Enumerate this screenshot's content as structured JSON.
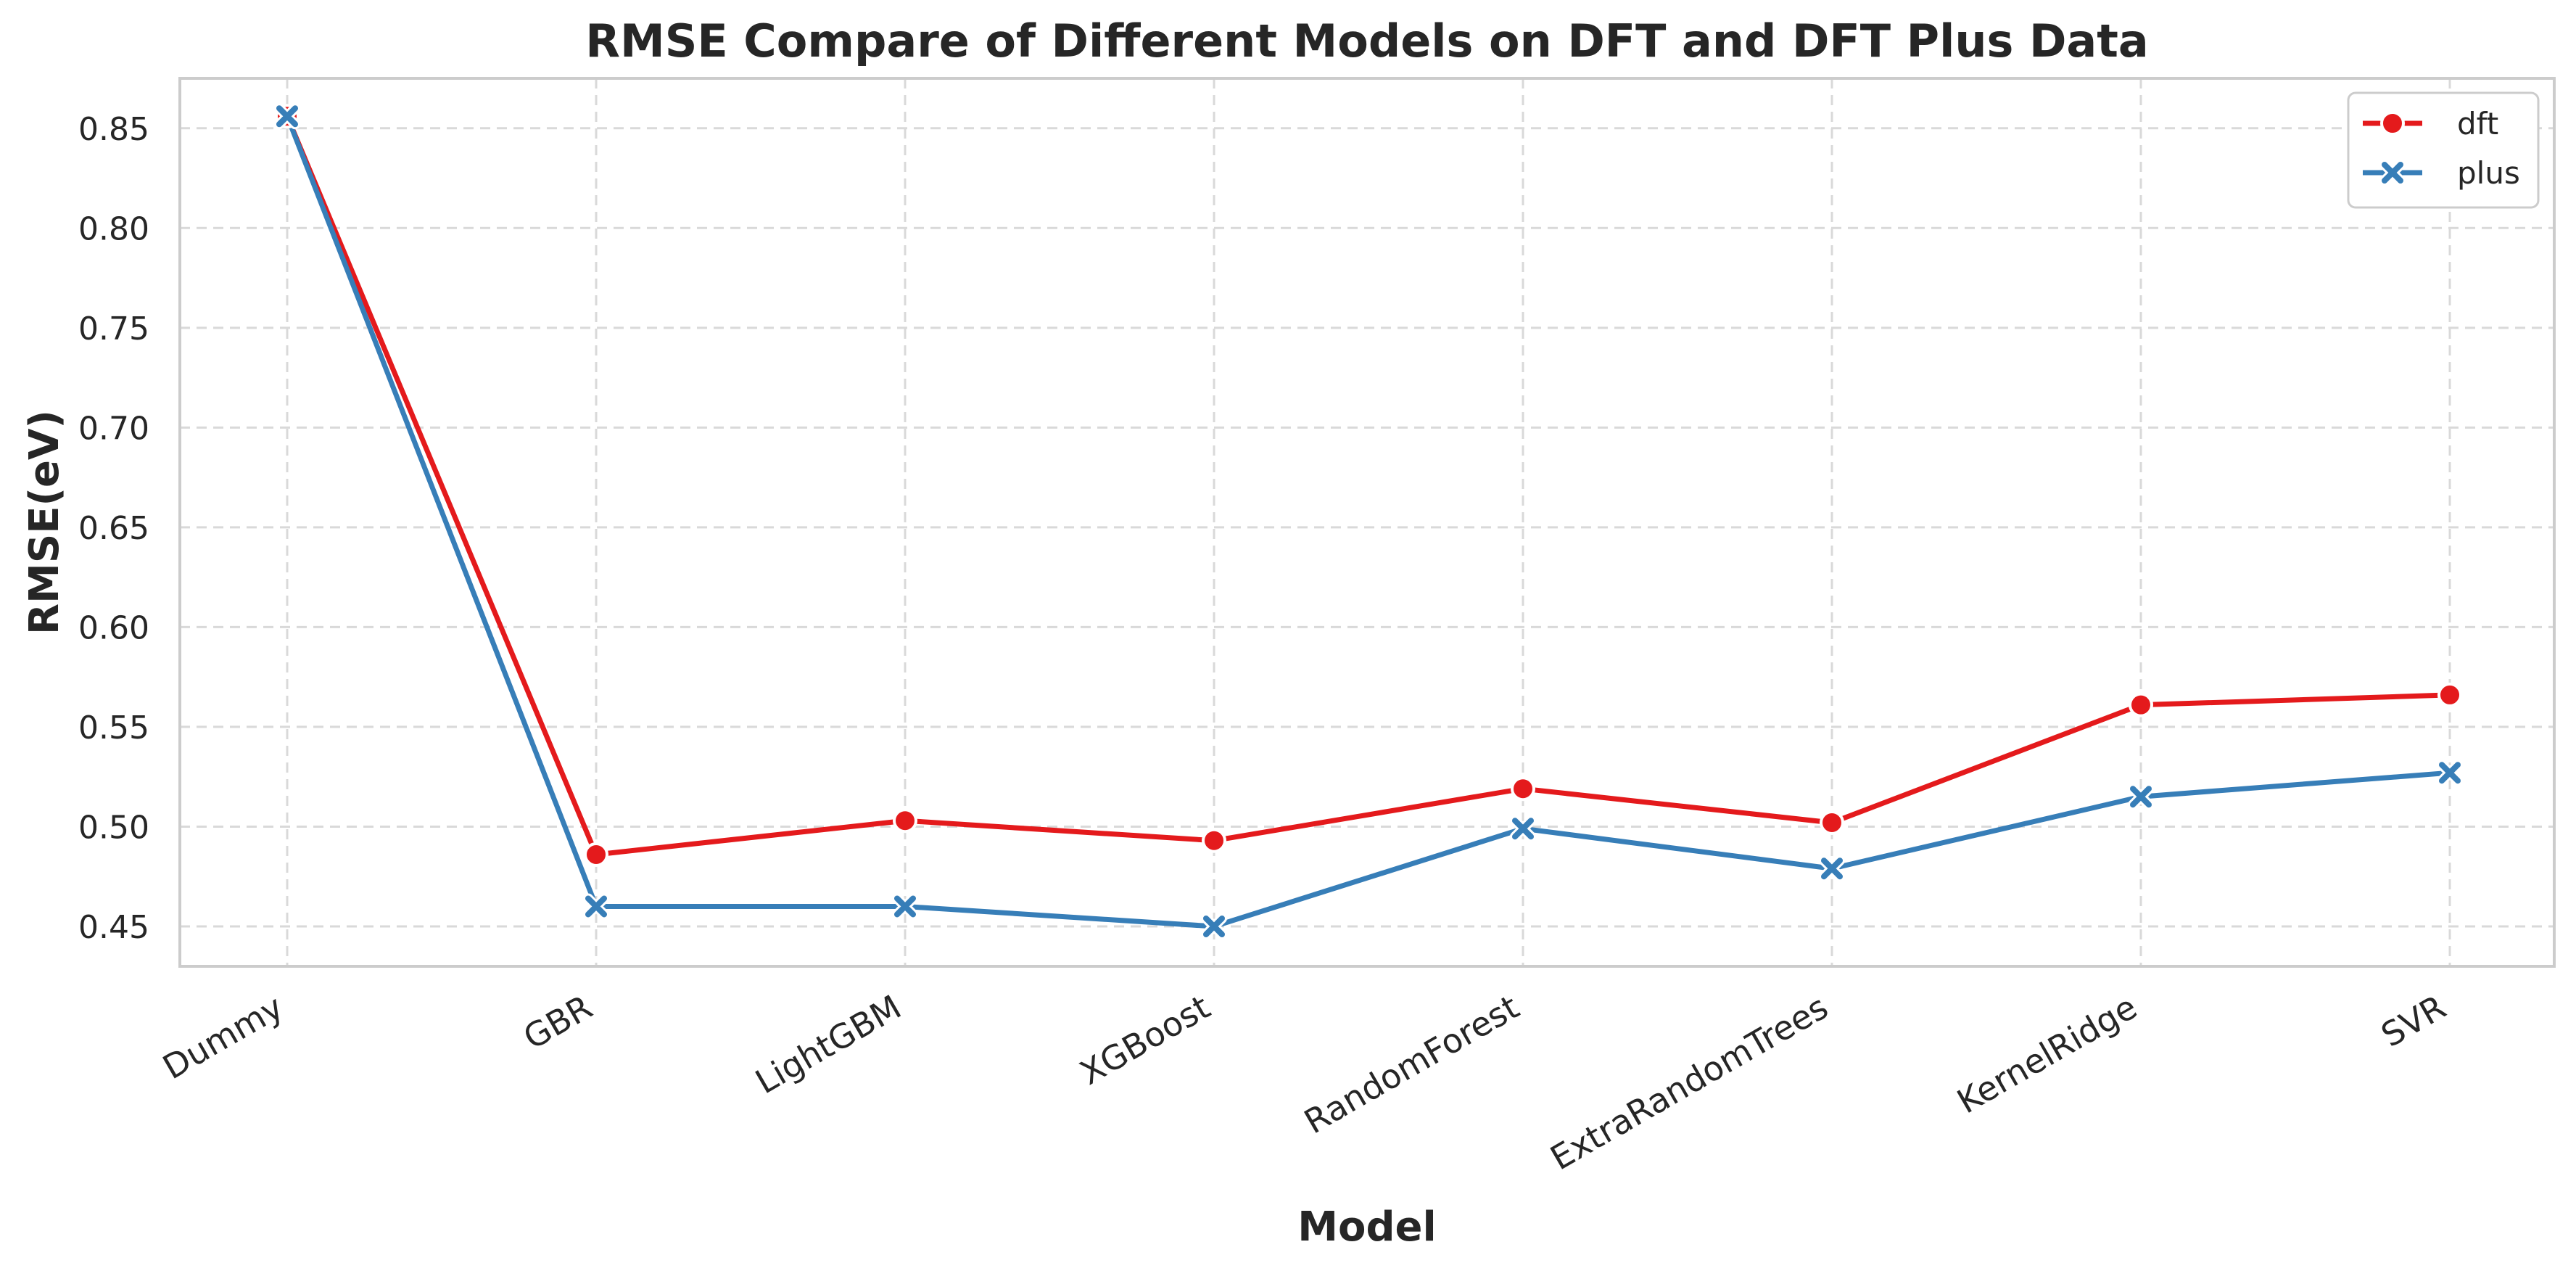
{
  "chart_data": {
    "type": "line",
    "title": "RMSE Compare of Different Models on DFT and DFT Plus Data",
    "xlabel": "Model",
    "ylabel": "RMSE(eV)",
    "categories": [
      "Dummy",
      "GBR",
      "LightGBM",
      "XGBoost",
      "RandomForest",
      "ExtraRandomTrees",
      "KernelRidge",
      "SVR"
    ],
    "ylim": [
      0.43,
      0.875
    ],
    "yticks": [
      0.45,
      0.5,
      0.55,
      0.6,
      0.65,
      0.7,
      0.75,
      0.8,
      0.85
    ],
    "ytick_labels": [
      "0.45",
      "0.50",
      "0.55",
      "0.60",
      "0.65",
      "0.70",
      "0.75",
      "0.80",
      "0.85"
    ],
    "grid": true,
    "legend_position": "top-right",
    "series": [
      {
        "name": "dft",
        "color": "#e41a1c",
        "marker": "circle",
        "values": [
          0.856,
          0.486,
          0.503,
          0.493,
          0.519,
          0.502,
          0.561,
          0.566
        ]
      },
      {
        "name": "plus",
        "color": "#377eb8",
        "marker": "x",
        "values": [
          0.856,
          0.46,
          0.46,
          0.45,
          0.499,
          0.479,
          0.515,
          0.527
        ]
      }
    ]
  }
}
